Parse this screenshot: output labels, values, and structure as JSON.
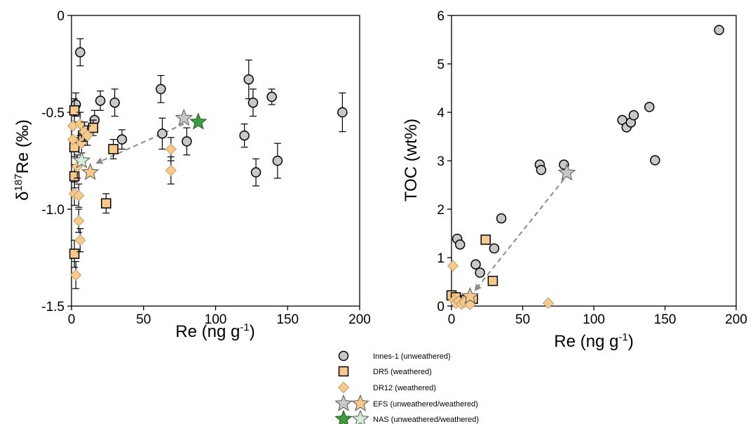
{
  "charts": [
    {
      "type": "scatter",
      "xlabel": "Re (ng g",
      "xlabel_sup": "-1",
      "xlabel_end": ")",
      "ylabel_pre": "δ",
      "ylabel_sup": "187",
      "ylabel_post": "Re (‰)",
      "xlim": [
        0,
        200
      ],
      "ylim": [
        -1.5,
        0
      ],
      "xticks": [
        0,
        50,
        100,
        150,
        200
      ],
      "yticks": [
        0,
        -0.5,
        -1.0,
        -1.5
      ],
      "xtick_labels": [
        "0",
        "50",
        "100",
        "150",
        "200"
      ],
      "ytick_labels": [
        "0",
        "-0.5",
        "-1.0",
        "-1.5"
      ],
      "series": [
        {
          "key": "innes",
          "marker": "circle",
          "points": [
            {
              "x": 3,
              "y": -0.46,
              "err": 0.06
            },
            {
              "x": 6,
              "y": -0.19,
              "err": 0.07
            },
            {
              "x": 16,
              "y": -0.54,
              "err": 0.05
            },
            {
              "x": 20,
              "y": -0.44,
              "err": 0.05
            },
            {
              "x": 30,
              "y": -0.45,
              "err": 0.07
            },
            {
              "x": 35,
              "y": -0.64,
              "err": 0.05
            },
            {
              "x": 62,
              "y": -0.38,
              "err": 0.07
            },
            {
              "x": 63,
              "y": -0.61,
              "err": 0.08
            },
            {
              "x": 80,
              "y": -0.65,
              "err": 0.07
            },
            {
              "x": 120,
              "y": -0.62,
              "err": 0.06
            },
            {
              "x": 123,
              "y": -0.33,
              "err": 0.1
            },
            {
              "x": 126,
              "y": -0.45,
              "err": 0.07
            },
            {
              "x": 128,
              "y": -0.81,
              "err": 0.07
            },
            {
              "x": 139,
              "y": -0.42,
              "err": 0.04
            },
            {
              "x": 143,
              "y": -0.75,
              "err": 0.09
            },
            {
              "x": 188,
              "y": -0.5,
              "err": 0.1
            }
          ]
        },
        {
          "key": "dr5",
          "marker": "square",
          "points": [
            {
              "x": 2,
              "y": -0.49,
              "err": 0.06
            },
            {
              "x": 2,
              "y": -0.68,
              "err": 0.05
            },
            {
              "x": 2,
              "y": -0.83,
              "err": 0.06
            },
            {
              "x": 2,
              "y": -1.23,
              "err": 0.07
            },
            {
              "x": 8,
              "y": -0.62,
              "err": 0.05
            },
            {
              "x": 15,
              "y": -0.58,
              "err": 0.04
            },
            {
              "x": 29,
              "y": -0.69,
              "err": 0.05
            },
            {
              "x": 24,
              "y": -0.97,
              "err": 0.05
            }
          ]
        },
        {
          "key": "dr12",
          "marker": "diamond",
          "points": [
            {
              "x": 1,
              "y": -0.57
            },
            {
              "x": 1,
              "y": -0.64
            },
            {
              "x": 2,
              "y": -0.92,
              "err": 0.06
            },
            {
              "x": 3,
              "y": -1.34,
              "err": 0.07
            },
            {
              "x": 4,
              "y": -0.78,
              "err": 0.06
            },
            {
              "x": 5,
              "y": -0.93,
              "err": 0.06
            },
            {
              "x": 5,
              "y": -1.06,
              "err": 0.06
            },
            {
              "x": 6,
              "y": -0.56,
              "err": 0.06
            },
            {
              "x": 6,
              "y": -1.16,
              "err": 0.06
            },
            {
              "x": 7,
              "y": -0.66,
              "err": 0.05
            },
            {
              "x": 9,
              "y": -0.6,
              "err": 0.05
            },
            {
              "x": 11,
              "y": -0.62,
              "err": 0.05
            },
            {
              "x": 69,
              "y": -0.69,
              "err": 0.06
            },
            {
              "x": 69,
              "y": -0.8,
              "err": 0.07
            }
          ]
        },
        {
          "key": "efs_u",
          "marker": "star",
          "points": [
            {
              "x": 78,
              "y": -0.53
            }
          ]
        },
        {
          "key": "efs_w",
          "marker": "star",
          "points": [
            {
              "x": 13,
              "y": -0.81
            }
          ]
        },
        {
          "key": "nas_u",
          "marker": "star",
          "points": [
            {
              "x": 88,
              "y": -0.55
            }
          ]
        },
        {
          "key": "nas_w",
          "marker": "star",
          "points": [
            {
              "x": 7,
              "y": -0.75
            }
          ]
        }
      ],
      "arrow": {
        "from": [
          78,
          -0.56
        ],
        "to": [
          18,
          -0.76
        ]
      }
    },
    {
      "type": "scatter",
      "xlabel": "Re (ng g",
      "xlabel_sup": "-1",
      "xlabel_end": ")",
      "ylabel": "TOC (wt%)",
      "xlim": [
        0,
        200
      ],
      "ylim": [
        0,
        6
      ],
      "xticks": [
        0,
        50,
        100,
        150,
        200
      ],
      "yticks": [
        0,
        1,
        2,
        3,
        4,
        5,
        6
      ],
      "xtick_labels": [
        "0",
        "50",
        "100",
        "150",
        "200"
      ],
      "ytick_labels": [
        "0",
        "1",
        "2",
        "3",
        "4",
        "5",
        "6"
      ],
      "series": [
        {
          "key": "innes",
          "marker": "circle",
          "points": [
            {
              "x": 4,
              "y": 1.39
            },
            {
              "x": 6,
              "y": 1.27
            },
            {
              "x": 17,
              "y": 0.86
            },
            {
              "x": 20,
              "y": 0.69
            },
            {
              "x": 30,
              "y": 1.19
            },
            {
              "x": 35,
              "y": 1.81
            },
            {
              "x": 62,
              "y": 2.92
            },
            {
              "x": 63,
              "y": 2.81
            },
            {
              "x": 79,
              "y": 2.92
            },
            {
              "x": 120,
              "y": 3.84
            },
            {
              "x": 123,
              "y": 3.69
            },
            {
              "x": 126,
              "y": 3.79
            },
            {
              "x": 128,
              "y": 3.94
            },
            {
              "x": 139,
              "y": 4.11
            },
            {
              "x": 143,
              "y": 3.01
            },
            {
              "x": 188,
              "y": 5.7
            }
          ]
        },
        {
          "key": "dr5",
          "marker": "square",
          "points": [
            {
              "x": 0,
              "y": 0.22
            },
            {
              "x": 3,
              "y": 0.18
            },
            {
              "x": 10,
              "y": 0.12
            },
            {
              "x": 15,
              "y": 0.15
            },
            {
              "x": 24,
              "y": 1.37
            },
            {
              "x": 29,
              "y": 0.52
            }
          ]
        },
        {
          "key": "dr12",
          "marker": "diamond",
          "points": [
            {
              "x": 1,
              "y": 0.83
            },
            {
              "x": 2,
              "y": 0.12
            },
            {
              "x": 3,
              "y": 0.06
            },
            {
              "x": 5,
              "y": 0.1
            },
            {
              "x": 7,
              "y": 0.04
            },
            {
              "x": 9,
              "y": 0.08
            },
            {
              "x": 13,
              "y": 0.03
            },
            {
              "x": 68,
              "y": 0.06
            }
          ]
        },
        {
          "key": "efs_u",
          "marker": "star",
          "points": [
            {
              "x": 81,
              "y": 2.75
            }
          ]
        },
        {
          "key": "efs_w",
          "marker": "star",
          "points": [
            {
              "x": 13,
              "y": 0.2
            }
          ]
        }
      ],
      "arrow": {
        "from": [
          79,
          2.62
        ],
        "to": [
          17,
          0.34
        ]
      }
    }
  ],
  "styles": {
    "innes": {
      "fill": "#c8c8c8",
      "stroke": "#000000"
    },
    "dr5": {
      "fill": "#f7c98a",
      "stroke": "#000000"
    },
    "dr12": {
      "fill": "#f7c98a",
      "stroke": "#c0a070"
    },
    "efs_u": {
      "fill": "#c8c8c8",
      "stroke": "#555555"
    },
    "efs_w": {
      "fill": "#f7c98a",
      "stroke": "#555555"
    },
    "nas_u": {
      "fill": "#3e9c3e",
      "stroke": "#1e5a1e"
    },
    "nas_w": {
      "fill": "#d6ecd4",
      "stroke": "#555555"
    },
    "arrow": "#8a8a8a"
  },
  "legend": [
    {
      "key": "innes",
      "markers": [
        "circle"
      ],
      "label": "Innes-1 (unweathered)"
    },
    {
      "key": "dr5",
      "markers": [
        "square"
      ],
      "label": "DR5 (weathered)"
    },
    {
      "key": "dr12",
      "markers": [
        "diamond"
      ],
      "label": "DR12 (weathered)"
    },
    {
      "key": "efs",
      "markers": [
        "efs_u",
        "efs_w"
      ],
      "label": "EFS (unweathered/weathered)"
    },
    {
      "key": "nas",
      "markers": [
        "nas_u",
        "nas_w"
      ],
      "label": "NAS (unweathered/weathered)"
    }
  ]
}
